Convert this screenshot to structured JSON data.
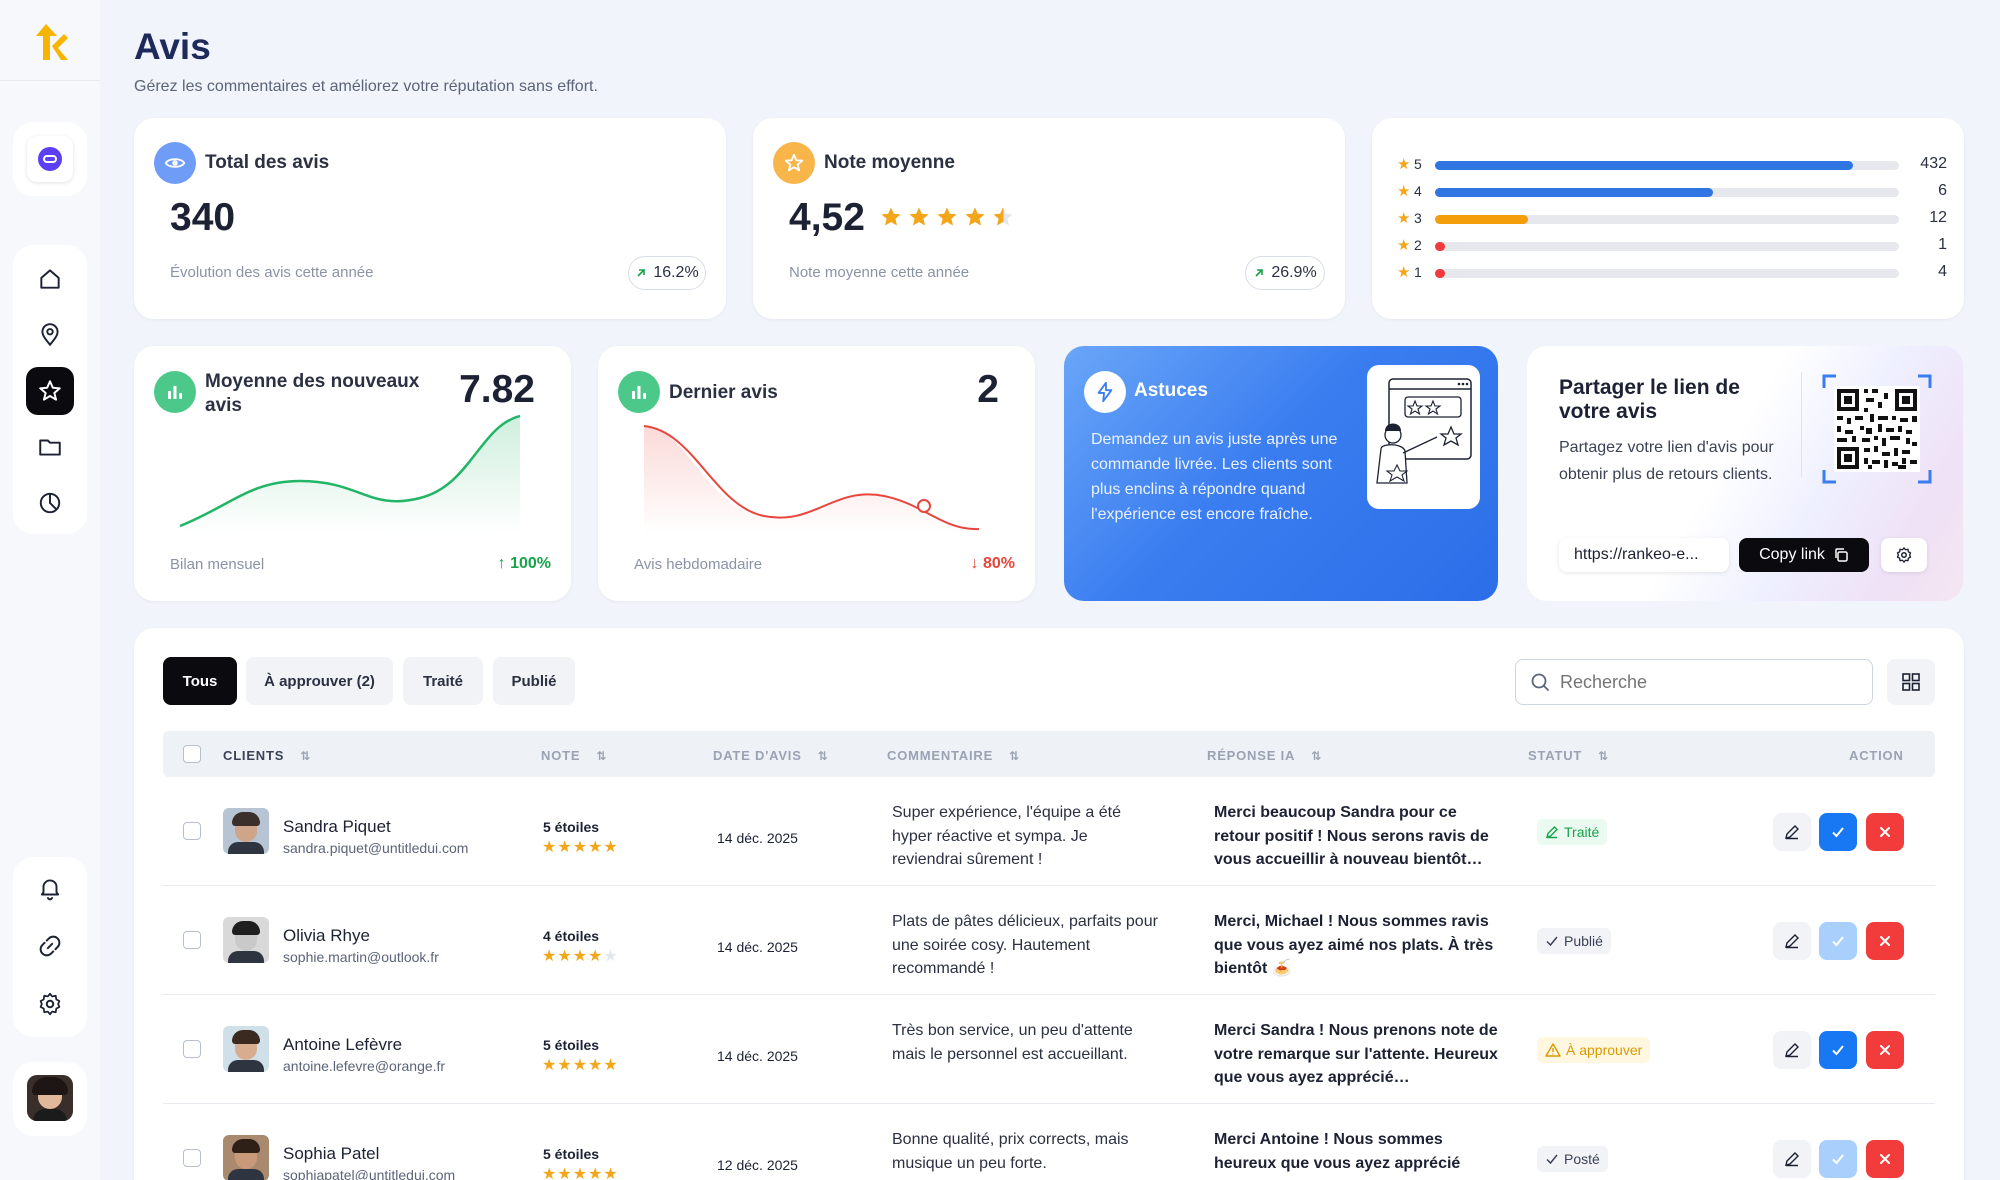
{
  "page": {
    "title": "Avis",
    "subtitle": "Gérez les commentaires et améliorez votre réputation sans effort."
  },
  "kpi_total": {
    "title": "Total des avis",
    "value": "340",
    "caption": "Évolution des avis cette année",
    "trend": "16.2%"
  },
  "kpi_rating": {
    "title": "Note moyenne",
    "value": "4,52",
    "caption": "Note moyenne cette année",
    "trend": "26.9%",
    "stars": 4.52
  },
  "distribution": [
    {
      "stars": "5",
      "count": "432",
      "fraction": 0.9,
      "color": "#2f76e2"
    },
    {
      "stars": "4",
      "count": "6",
      "fraction": 0.6,
      "color": "#2f76e2"
    },
    {
      "stars": "3",
      "count": "12",
      "fraction": 0.2,
      "color": "#f59e0b"
    },
    {
      "stars": "2",
      "count": "1",
      "fraction": 0.02,
      "color": "#ef3b3b"
    },
    {
      "stars": "1",
      "count": "4",
      "fraction": 0.02,
      "color": "#ef3b3b"
    }
  ],
  "new_avg": {
    "title": "Moyenne des nouveaux avis",
    "value": "7.82",
    "caption": "Bilan mensuel",
    "trend": "100%",
    "color": "#22b566"
  },
  "last_review": {
    "title": "Dernier avis",
    "value": "2",
    "caption": "Avis hebdomadaire",
    "trend": "80%",
    "color": "#e8453c"
  },
  "tips": {
    "title": "Astuces",
    "text": "Demandez un avis juste après une commande livrée. Les clients sont plus enclins à répondre quand l'expérience est encore fraîche."
  },
  "share": {
    "title": "Partager le lien de votre avis",
    "text": "Partagez votre lien d'avis pour obtenir plus de retours clients.",
    "link": "https://rankeo-e...",
    "copy_label": "Copy link"
  },
  "tabs": [
    {
      "label": "Tous"
    },
    {
      "label": "À approuver (2)"
    },
    {
      "label": "Traité"
    },
    {
      "label": "Publié"
    }
  ],
  "search": {
    "placeholder": "Recherche"
  },
  "columns": {
    "clients": "CLIENTS",
    "note": "NOTE",
    "date": "DATE D'AVIS",
    "comment": "COMMENTAIRE",
    "reply": "RÉPONSE IA",
    "status": "STATUT",
    "action": "ACTION"
  },
  "rows": [
    {
      "name": "Sandra Piquet",
      "email": "sandra.piquet@untitledui.com",
      "note_label": "5 étoiles",
      "stars": 5,
      "date": "14 déc. 2025",
      "comment": "Super expérience, l'équipe a été hyper réactive et sympa. Je reviendrai sûrement !",
      "reply": "Merci beaucoup Sandra pour ce retour positif ! Nous serons ravis de vous accueillir à nouveau bientôt…",
      "status": "Traité",
      "status_kind": "done"
    },
    {
      "name": "Olivia Rhye",
      "email": "sophie.martin@outlook.fr",
      "note_label": "4 étoiles",
      "stars": 4,
      "date": "14 déc. 2025",
      "comment": "Plats de pâtes délicieux, parfaits pour une soirée cosy. Hautement recommandé !",
      "reply": "Merci, Michael ! Nous sommes ravis que vous ayez aimé nos plats. À très bientôt 🍝",
      "status": "Publié",
      "status_kind": "published"
    },
    {
      "name": "Antoine Lefèvre",
      "email": "antoine.lefevre@orange.fr",
      "note_label": "5 étoiles",
      "stars": 5,
      "date": "14 déc. 2025",
      "comment": "Très bon service, un peu d'attente mais le personnel est accueillant.",
      "reply": "Merci Sandra ! Nous prenons note de votre remarque sur l'attente. Heureux que vous ayez apprécié…",
      "status": "À approuver",
      "status_kind": "pending"
    },
    {
      "name": "Sophia Patel",
      "email": "sophiapatel@untitledui.com",
      "note_label": "5 étoiles",
      "stars": 5,
      "date": "12 déc. 2025",
      "comment": "Bonne qualité, prix corrects, mais musique un peu forte.",
      "reply": "Merci Antoine ! Nous sommes heureux que vous ayez apprécié",
      "status": "Posté",
      "status_kind": "published"
    }
  ]
}
